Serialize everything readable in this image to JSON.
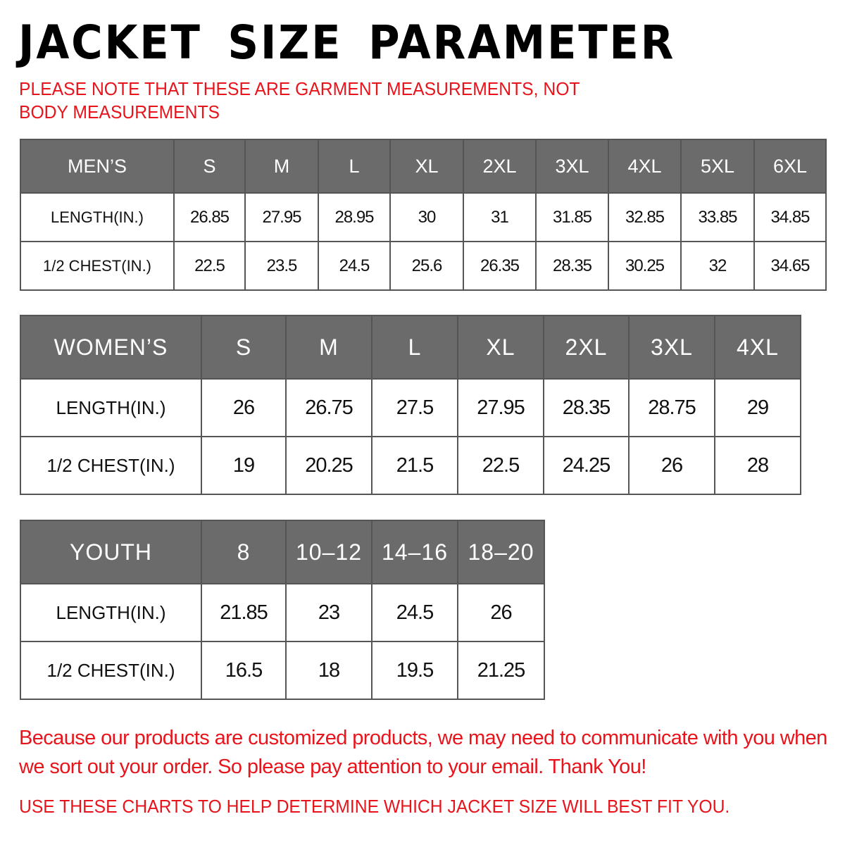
{
  "title": "JACKET SIZE PARAMETER",
  "note": "PLEASE NOTE THAT THESE ARE GARMENT MEASUREMENTS, NOT BODY MEASUREMENTS",
  "men": {
    "header": [
      "MEN’S",
      "S",
      "M",
      "L",
      "XL",
      "2XL",
      "3XL",
      "4XL",
      "5XL",
      "6XL"
    ],
    "rows": [
      [
        "LENGTH(IN.)",
        "26.85",
        "27.95",
        "28.95",
        "30",
        "31",
        "31.85",
        "32.85",
        "33.85",
        "34.85"
      ],
      [
        "1/2 CHEST(IN.)",
        "22.5",
        "23.5",
        "24.5",
        "25.6",
        "26.35",
        "28.35",
        "30.25",
        "32",
        "34.65"
      ]
    ]
  },
  "women": {
    "header": [
      "WOMEN’S",
      "S",
      "M",
      "L",
      "XL",
      "2XL",
      "3XL",
      "4XL"
    ],
    "rows": [
      [
        "LENGTH(IN.)",
        "26",
        "26.75",
        "27.5",
        "27.95",
        "28.35",
        "28.75",
        "29"
      ],
      [
        "1/2 CHEST(IN.)",
        "19",
        "20.25",
        "21.5",
        "22.5",
        "24.25",
        "26",
        "28"
      ]
    ]
  },
  "youth": {
    "header": [
      "YOUTH",
      "8",
      "10–12",
      "14–16",
      "18–20"
    ],
    "rows": [
      [
        "LENGTH(IN.)",
        "21.85",
        "23",
        "24.5",
        "26"
      ],
      [
        "1/2 CHEST(IN.)",
        "16.5",
        "18",
        "19.5",
        "21.25"
      ]
    ]
  },
  "footer_message": "Because our products are customized products, we may need to communicate with you when we sort out your order. So please pay attention to your email. Thank You!",
  "footer_instruction": "USE THESE CHARTS TO HELP DETERMINE WHICH JACKET SIZE WILL BEST FIT YOU.",
  "colors": {
    "header_bg": "#6b6b6b",
    "accent_red": "#e8141c"
  }
}
